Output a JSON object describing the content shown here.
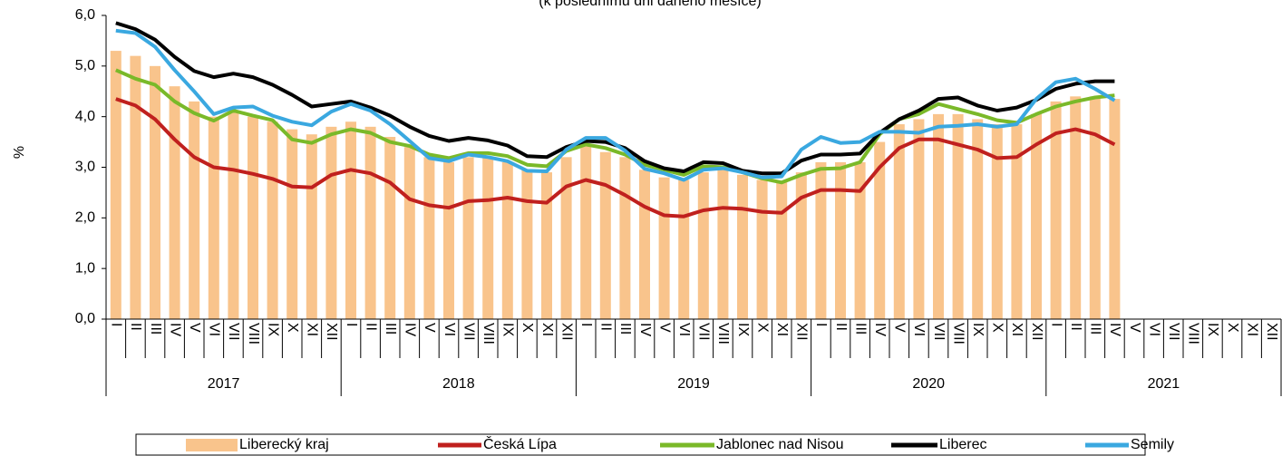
{
  "chart_data": {
    "type": "bar-line",
    "subtitle": "(k poslednímu dni daného měsíce)",
    "y_label": "%",
    "categories": [
      "I",
      "II",
      "III",
      "IV",
      "V",
      "VI",
      "VII",
      "VIII",
      "IX",
      "X",
      "XI",
      "XII",
      "I",
      "II",
      "III",
      "IV",
      "V",
      "VI",
      "VII",
      "VIII",
      "IX",
      "X",
      "XI",
      "XII",
      "I",
      "II",
      "III",
      "IV",
      "V",
      "VI",
      "VII",
      "VIII",
      "IX",
      "X",
      "XI",
      "XII",
      "I",
      "II",
      "III",
      "IV",
      "V",
      "VI",
      "VII",
      "VIII",
      "IX",
      "X",
      "XI",
      "XII",
      "I",
      "II",
      "III",
      "IV",
      "V",
      "VI",
      "VII",
      "VIII",
      "IX",
      "X",
      "XI",
      "XII"
    ],
    "years": [
      "2017",
      "2018",
      "2019",
      "2020",
      "2021"
    ],
    "ylim": [
      0,
      6
    ],
    "yticks": [
      {
        "value": 0,
        "label": "0,0"
      },
      {
        "value": 1,
        "label": "1,0"
      },
      {
        "value": 2,
        "label": "2,0"
      },
      {
        "value": 3,
        "label": "3,0"
      },
      {
        "value": 4,
        "label": "4,0"
      },
      {
        "value": 5,
        "label": "5,0"
      },
      {
        "value": 6,
        "label": "6,0"
      }
    ],
    "series": [
      {
        "name": "Liberecký kraj",
        "kind": "bar",
        "color": "#f9c48c",
        "values": [
          5.3,
          5.2,
          5.0,
          4.6,
          4.3,
          4.0,
          4.1,
          4.0,
          3.9,
          3.75,
          3.65,
          3.8,
          3.9,
          3.8,
          3.6,
          3.4,
          3.2,
          3.1,
          3.2,
          3.2,
          3.1,
          2.95,
          2.9,
          3.2,
          3.45,
          3.3,
          3.2,
          2.95,
          2.8,
          2.75,
          2.9,
          2.95,
          2.85,
          2.75,
          2.7,
          2.9,
          3.1,
          3.1,
          3.1,
          3.5,
          3.85,
          3.95,
          4.05,
          4.05,
          3.95,
          3.85,
          3.85,
          4.05,
          4.3,
          4.4,
          4.4,
          4.35,
          null,
          null,
          null,
          null,
          null,
          null,
          null,
          null
        ]
      },
      {
        "name": "Česká Lípa",
        "kind": "line",
        "color": "#c0201e",
        "values": [
          4.35,
          4.22,
          3.95,
          3.55,
          3.2,
          3.0,
          2.95,
          2.87,
          2.77,
          2.62,
          2.6,
          2.85,
          2.95,
          2.88,
          2.7,
          2.37,
          2.25,
          2.2,
          2.33,
          2.35,
          2.4,
          2.33,
          2.3,
          2.62,
          2.75,
          2.65,
          2.45,
          2.22,
          2.05,
          2.03,
          2.15,
          2.2,
          2.18,
          2.12,
          2.1,
          2.4,
          2.55,
          2.55,
          2.53,
          3.0,
          3.38,
          3.55,
          3.55,
          3.45,
          3.35,
          3.18,
          3.2,
          3.45,
          3.67,
          3.75,
          3.65,
          3.45,
          null,
          null,
          null,
          null,
          null,
          null,
          null,
          null
        ]
      },
      {
        "name": "Jablonec nad Nisou",
        "kind": "line",
        "color": "#7ab929",
        "values": [
          4.92,
          4.75,
          4.63,
          4.3,
          4.07,
          3.92,
          4.12,
          4.02,
          3.93,
          3.55,
          3.48,
          3.65,
          3.75,
          3.68,
          3.5,
          3.42,
          3.25,
          3.18,
          3.28,
          3.28,
          3.22,
          3.05,
          3.02,
          3.32,
          3.45,
          3.38,
          3.25,
          3.05,
          2.95,
          2.85,
          3.02,
          3.0,
          2.9,
          2.78,
          2.7,
          2.85,
          2.97,
          2.98,
          3.1,
          3.65,
          3.95,
          4.05,
          4.25,
          4.15,
          4.05,
          3.93,
          3.88,
          4.05,
          4.2,
          4.3,
          4.38,
          4.42,
          null,
          null,
          null,
          null,
          null,
          null,
          null,
          null
        ]
      },
      {
        "name": "Liberec",
        "kind": "line",
        "color": "#000000",
        "values": [
          5.85,
          5.73,
          5.52,
          5.18,
          4.9,
          4.78,
          4.85,
          4.78,
          4.63,
          4.43,
          4.2,
          4.25,
          4.3,
          4.18,
          4.02,
          3.8,
          3.62,
          3.52,
          3.58,
          3.53,
          3.43,
          3.22,
          3.2,
          3.4,
          3.52,
          3.5,
          3.38,
          3.12,
          2.98,
          2.92,
          3.1,
          3.08,
          2.93,
          2.88,
          2.88,
          3.13,
          3.25,
          3.25,
          3.27,
          3.68,
          3.95,
          4.12,
          4.35,
          4.38,
          4.22,
          4.12,
          4.18,
          4.33,
          4.55,
          4.65,
          4.7,
          4.7,
          null,
          null,
          null,
          null,
          null,
          null,
          null,
          null
        ]
      },
      {
        "name": "Semily",
        "kind": "line",
        "color": "#3aa8e0",
        "values": [
          5.7,
          5.65,
          5.38,
          4.92,
          4.5,
          4.05,
          4.18,
          4.2,
          4.02,
          3.9,
          3.83,
          4.1,
          4.25,
          4.12,
          3.85,
          3.52,
          3.18,
          3.12,
          3.25,
          3.2,
          3.12,
          2.93,
          2.92,
          3.35,
          3.58,
          3.58,
          3.33,
          2.97,
          2.88,
          2.75,
          2.95,
          2.98,
          2.9,
          2.8,
          2.82,
          3.35,
          3.6,
          3.48,
          3.5,
          3.7,
          3.7,
          3.68,
          3.8,
          3.82,
          3.85,
          3.8,
          3.85,
          4.35,
          4.68,
          4.75,
          4.55,
          4.32,
          null,
          null,
          null,
          null,
          null,
          null,
          null,
          null
        ]
      }
    ]
  }
}
